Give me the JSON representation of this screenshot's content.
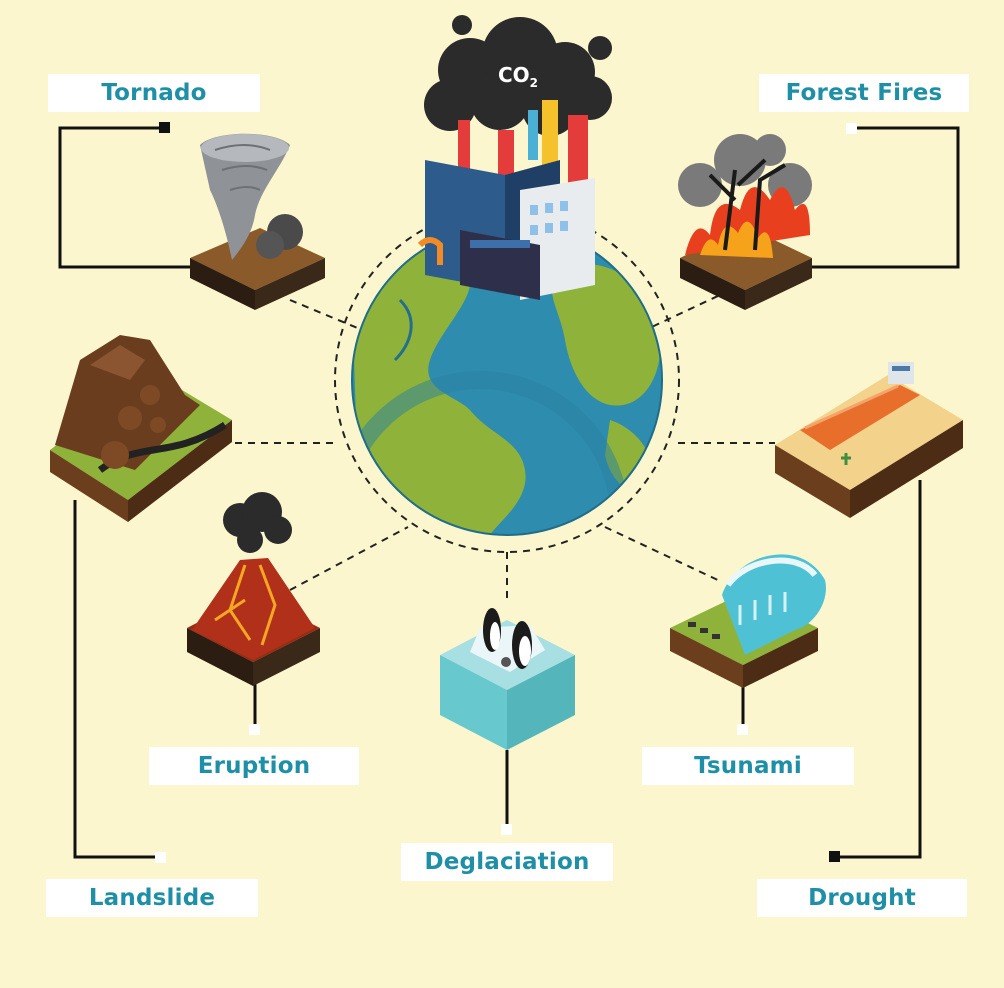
{
  "center": {
    "emission_label": "CO",
    "emission_subscript": "2"
  },
  "labels": {
    "tornado": "Tornado",
    "forest_fires": "Forest Fires",
    "eruption": "Eruption",
    "tsunami": "Tsunami",
    "landslide": "Landslide",
    "deglaciation": "Deglaciation",
    "drought": "Drought"
  },
  "colors": {
    "background": "#fcf6cf",
    "label_text": "#1e8fa6",
    "ocean": "#2e8cae",
    "land": "#8fb23a",
    "connector": "#111111"
  },
  "icons": [
    "tornado-icon",
    "forest-fire-icon",
    "factory-icon",
    "earth-globe-icon",
    "landslide-icon",
    "eruption-icon",
    "penguins-iceberg-icon",
    "tsunami-icon",
    "drought-ship-icon"
  ]
}
